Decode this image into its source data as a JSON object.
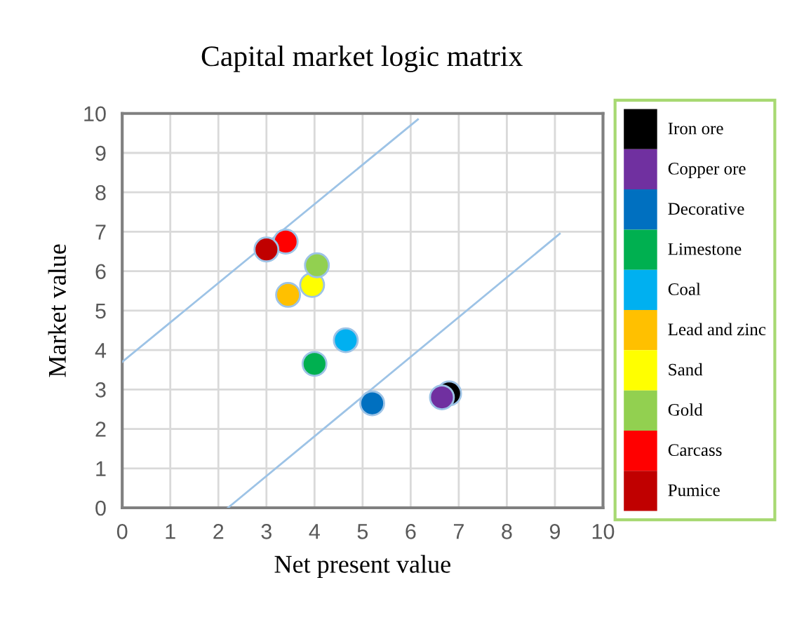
{
  "chart_data": {
    "type": "scatter",
    "title": "Capital market logic matrix",
    "xlabel": "Net present value",
    "ylabel": "Market value",
    "xlim": [
      0,
      10
    ],
    "ylim": [
      0,
      10
    ],
    "xticks": [
      0,
      1,
      2,
      3,
      4,
      5,
      6,
      7,
      8,
      9,
      10
    ],
    "yticks": [
      0,
      1,
      2,
      3,
      4,
      5,
      6,
      7,
      8,
      9,
      10
    ],
    "grid": true,
    "legend": "right",
    "marker": "circle",
    "series": [
      {
        "name": "Iron ore",
        "color": "#000000",
        "x": [
          6.8
        ],
        "values": [
          2.9
        ]
      },
      {
        "name": "Copper ore",
        "color": "#7030a0",
        "x": [
          6.65
        ],
        "values": [
          2.8
        ]
      },
      {
        "name": "Decorative",
        "color": "#0070c0",
        "x": [
          5.2
        ],
        "values": [
          2.65
        ]
      },
      {
        "name": "Limestone",
        "color": "#00b050",
        "x": [
          4.0
        ],
        "values": [
          3.65
        ]
      },
      {
        "name": "Coal",
        "color": "#00b0f0",
        "x": [
          4.65
        ],
        "values": [
          4.25
        ]
      },
      {
        "name": "Lead and zinc",
        "color": "#ffc000",
        "x": [
          3.45
        ],
        "values": [
          5.4
        ]
      },
      {
        "name": "Sand",
        "color": "#ffff00",
        "x": [
          3.95
        ],
        "values": [
          5.65
        ]
      },
      {
        "name": "Gold",
        "color": "#92d050",
        "x": [
          4.05
        ],
        "values": [
          6.15
        ]
      },
      {
        "name": "Carcass",
        "color": "#ff0000",
        "x": [
          3.4
        ],
        "values": [
          6.75
        ]
      },
      {
        "name": "Pumice",
        "color": "#c00000",
        "x": [
          3.0
        ],
        "values": [
          6.55
        ]
      },
      {
        "type": "line",
        "marker": "none",
        "color": "#9dc3e6",
        "x": [
          0,
          6.15
        ],
        "values": [
          3.7,
          9.85
        ]
      },
      {
        "type": "line",
        "marker": "none",
        "color": "#9dc3e6",
        "x": [
          2.2,
          9.1
        ],
        "values": [
          0,
          6.95
        ]
      }
    ]
  }
}
